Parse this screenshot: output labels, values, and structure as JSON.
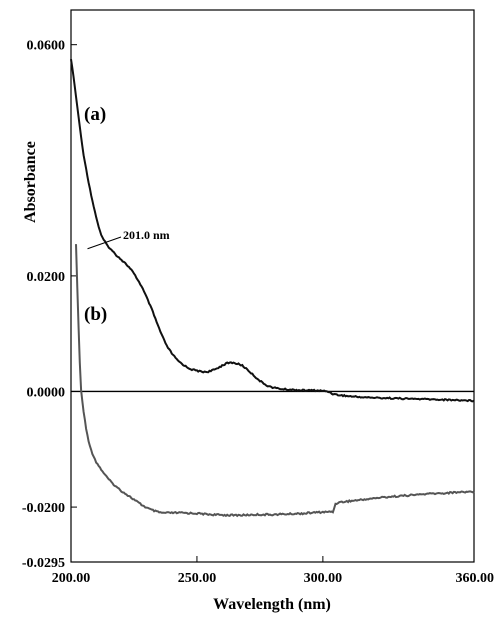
{
  "chart_data": {
    "type": "line",
    "xlabel": "Wavelength (nm)",
    "ylabel": "Absorbance",
    "xlim": [
      200,
      360
    ],
    "ylim": [
      -0.0295,
      0.066
    ],
    "x_ticks": [
      {
        "value": 200,
        "label": "200.00"
      },
      {
        "value": 250,
        "label": "250.00"
      },
      {
        "value": 300,
        "label": "300.00"
      },
      {
        "value": 360,
        "label": "360.00"
      }
    ],
    "y_ticks": [
      {
        "value": 0.06,
        "label": "0.0600"
      },
      {
        "value": 0.02,
        "label": "0.0200"
      },
      {
        "value": 0.0,
        "label": "0.0000"
      },
      {
        "value": -0.02,
        "label": "-0.0200"
      },
      {
        "value": -0.0295,
        "label": "-0.0295"
      }
    ],
    "baseline": 0.0,
    "series": [
      {
        "name": "(a)",
        "color": "#111111",
        "points": [
          [
            200,
            0.0575
          ],
          [
            201,
            0.0545
          ],
          [
            202,
            0.051
          ],
          [
            203,
            0.0475
          ],
          [
            204,
            0.044
          ],
          [
            205,
            0.041
          ],
          [
            206,
            0.0385
          ],
          [
            207,
            0.0362
          ],
          [
            208,
            0.034
          ],
          [
            209,
            0.032
          ],
          [
            210,
            0.0302
          ],
          [
            211,
            0.0285
          ],
          [
            212,
            0.027
          ],
          [
            214,
            0.0255
          ],
          [
            216,
            0.0245
          ],
          [
            218,
            0.0236
          ],
          [
            220,
            0.0228
          ],
          [
            222,
            0.022
          ],
          [
            224,
            0.021
          ],
          [
            226,
            0.0197
          ],
          [
            228,
            0.0182
          ],
          [
            230,
            0.0163
          ],
          [
            232,
            0.0143
          ],
          [
            234,
            0.012
          ],
          [
            236,
            0.0098
          ],
          [
            238,
            0.0079
          ],
          [
            240,
            0.0066
          ],
          [
            242,
            0.0055
          ],
          [
            244,
            0.0048
          ],
          [
            246,
            0.0042
          ],
          [
            248,
            0.0038
          ],
          [
            250,
            0.0036
          ],
          [
            252,
            0.0034
          ],
          [
            254,
            0.0034
          ],
          [
            256,
            0.0036
          ],
          [
            258,
            0.004
          ],
          [
            260,
            0.0045
          ],
          [
            262,
            0.0049
          ],
          [
            264,
            0.005
          ],
          [
            266,
            0.0048
          ],
          [
            268,
            0.0045
          ],
          [
            270,
            0.0038
          ],
          [
            272,
            0.003
          ],
          [
            274,
            0.0022
          ],
          [
            276,
            0.0015
          ],
          [
            278,
            0.001
          ],
          [
            280,
            0.0007
          ],
          [
            284,
            0.0004
          ],
          [
            288,
            0.0003
          ],
          [
            292,
            0.0002
          ],
          [
            296,
            0.0002
          ],
          [
            300,
            0.0001
          ],
          [
            302,
            0.0
          ],
          [
            304,
            -0.0004
          ],
          [
            306,
            -0.0006
          ],
          [
            310,
            -0.0008
          ],
          [
            316,
            -0.001
          ],
          [
            322,
            -0.0011
          ],
          [
            330,
            -0.0012
          ],
          [
            338,
            -0.0013
          ],
          [
            346,
            -0.0014
          ],
          [
            354,
            -0.0015
          ],
          [
            360,
            -0.0016
          ]
        ]
      },
      {
        "name": "(b)",
        "color": "#555555",
        "points": [
          [
            202,
            0.0255
          ],
          [
            202.5,
            0.018
          ],
          [
            203,
            0.011
          ],
          [
            203.5,
            0.005
          ],
          [
            204,
            0.0002
          ],
          [
            205,
            -0.0035
          ],
          [
            206,
            -0.0065
          ],
          [
            207,
            -0.0085
          ],
          [
            208,
            -0.0102
          ],
          [
            210,
            -0.0122
          ],
          [
            212,
            -0.0135
          ],
          [
            214,
            -0.0147
          ],
          [
            216,
            -0.0157
          ],
          [
            218,
            -0.0165
          ],
          [
            220,
            -0.0172
          ],
          [
            222,
            -0.0178
          ],
          [
            224,
            -0.0184
          ],
          [
            226,
            -0.019
          ],
          [
            228,
            -0.0196
          ],
          [
            230,
            -0.0201
          ],
          [
            232,
            -0.0205
          ],
          [
            234,
            -0.0208
          ],
          [
            236,
            -0.021
          ],
          [
            240,
            -0.021
          ],
          [
            244,
            -0.021
          ],
          [
            250,
            -0.0211
          ],
          [
            256,
            -0.0213
          ],
          [
            262,
            -0.0214
          ],
          [
            268,
            -0.0214
          ],
          [
            274,
            -0.0213
          ],
          [
            280,
            -0.0213
          ],
          [
            286,
            -0.0212
          ],
          [
            292,
            -0.0211
          ],
          [
            298,
            -0.0209
          ],
          [
            304,
            -0.0208
          ],
          [
            305,
            -0.0195
          ],
          [
            306,
            -0.0192
          ],
          [
            312,
            -0.0189
          ],
          [
            318,
            -0.0186
          ],
          [
            324,
            -0.0183
          ],
          [
            330,
            -0.0181
          ],
          [
            336,
            -0.0179
          ],
          [
            342,
            -0.0177
          ],
          [
            348,
            -0.0176
          ],
          [
            354,
            -0.0174
          ],
          [
            360,
            -0.0173
          ]
        ]
      }
    ],
    "annotation": {
      "text": "201.0 nm",
      "x": 201.0,
      "y": 0.0247
    }
  }
}
